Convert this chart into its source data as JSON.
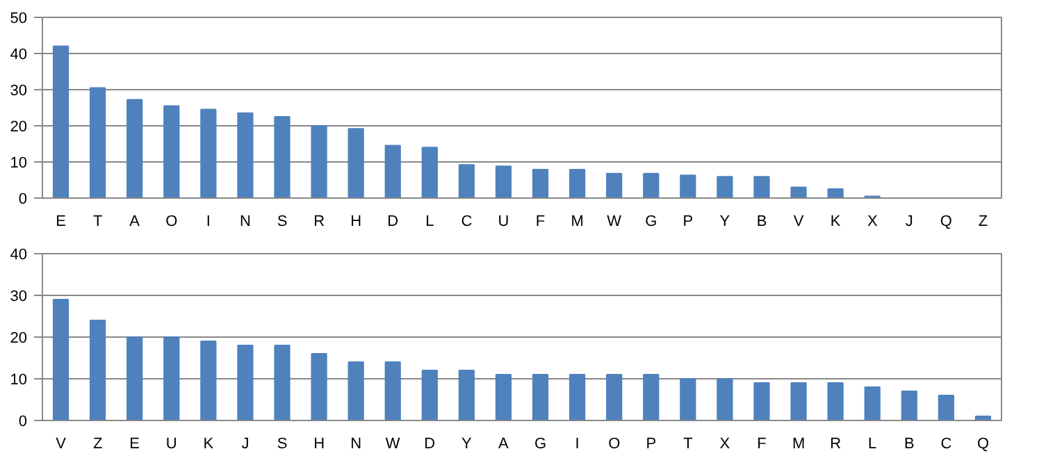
{
  "chart_data": [
    {
      "type": "bar",
      "categories": [
        "E",
        "T",
        "A",
        "O",
        "I",
        "N",
        "S",
        "R",
        "H",
        "D",
        "L",
        "C",
        "U",
        "F",
        "M",
        "W",
        "G",
        "P",
        "Y",
        "B",
        "V",
        "K",
        "X",
        "J",
        "Q",
        "Z"
      ],
      "values": [
        42,
        30.5,
        27.2,
        25.5,
        24.5,
        23.5,
        22.5,
        20,
        19.2,
        14.5,
        14,
        9.2,
        8.8,
        7.9,
        7.9,
        6.8,
        6.8,
        6.3,
        5.9,
        5.9,
        3,
        2.5,
        0.5,
        0,
        0,
        0
      ],
      "color": "#4f81bd",
      "ylim": [
        0,
        50
      ],
      "yticks": [
        0,
        10,
        20,
        30,
        40,
        50
      ],
      "grid": "y"
    },
    {
      "type": "bar",
      "categories": [
        "V",
        "Z",
        "E",
        "U",
        "K",
        "J",
        "S",
        "H",
        "N",
        "W",
        "D",
        "Y",
        "A",
        "G",
        "I",
        "O",
        "P",
        "T",
        "X",
        "F",
        "M",
        "R",
        "L",
        "B",
        "C",
        "Q"
      ],
      "values": [
        29,
        24,
        20,
        20,
        19,
        18,
        18,
        16,
        14,
        14,
        12,
        12,
        11,
        11,
        11,
        11,
        11,
        10,
        10,
        9,
        9,
        9,
        8,
        7,
        6,
        1
      ],
      "color": "#4f81bd",
      "ylim": [
        0,
        40
      ],
      "yticks": [
        0,
        10,
        20,
        30,
        40
      ],
      "grid": "y"
    }
  ]
}
